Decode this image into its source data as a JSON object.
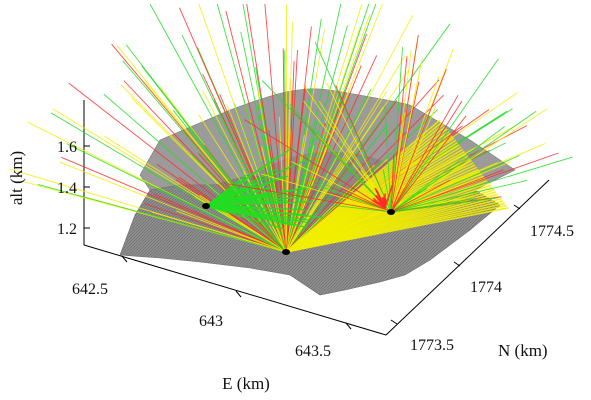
{
  "chart_data": {
    "type": "3d-surface",
    "z_axis": {
      "label": "alt (km)",
      "ticks": [
        "1.2",
        "1.4",
        "1.6"
      ],
      "values": [
        1.2,
        1.4,
        1.6
      ]
    },
    "x_axis": {
      "label": "E (km)",
      "ticks": [
        "642.5",
        "643",
        "643.5"
      ],
      "values": [
        642.5,
        643.0,
        643.5
      ]
    },
    "y_axis": {
      "label": "N (km)",
      "ticks": [
        "1773.5",
        "1774",
        "1774.5"
      ],
      "values": [
        1773.5,
        1774.0,
        1774.5
      ]
    },
    "grid": false,
    "surface_color": "#8a8a8a",
    "ray_colors": {
      "red": "#ff2a2a",
      "yellow": "#f2ee00",
      "green": "#22dd22"
    },
    "stations": [
      {
        "id": "left",
        "color": "#000000"
      },
      {
        "id": "center",
        "color": "#000000"
      },
      {
        "id": "right",
        "color": "#000000"
      }
    ]
  }
}
